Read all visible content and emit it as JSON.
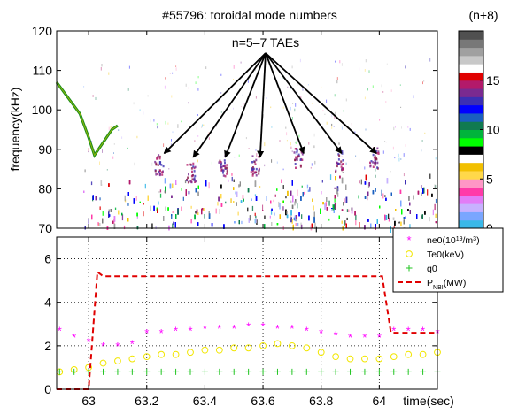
{
  "figure": {
    "title": "#55796: toroidal mode numbers",
    "colorbar_title": "(n+8)",
    "annotation": "n=5–7 TAEs"
  },
  "chart_data": [
    {
      "type": "heatmap",
      "title": "#55796: toroidal mode numbers",
      "xlabel": "",
      "ylabel": "frequency(kHz)",
      "xlim": [
        62.89,
        64.2
      ],
      "ylim": [
        70,
        120
      ],
      "yticks": [
        70,
        80,
        90,
        100,
        110,
        120
      ],
      "annotation": "n=5–7 TAEs",
      "arrow_targets": [
        {
          "t": 63.26,
          "f": 89
        },
        {
          "t": 63.36,
          "f": 88
        },
        {
          "t": 63.47,
          "f": 88
        },
        {
          "t": 63.59,
          "f": 88
        },
        {
          "t": 63.74,
          "f": 89
        },
        {
          "t": 63.87,
          "f": 89
        },
        {
          "t": 63.99,
          "f": 89
        }
      ],
      "features": {
        "sweeping_mode": [
          [
            62.89,
            107
          ],
          [
            62.97,
            99
          ],
          [
            63.0,
            93
          ],
          [
            63.02,
            88.5
          ],
          [
            63.08,
            95
          ],
          [
            63.1,
            96
          ]
        ],
        "tae_bursts": [
          {
            "t": 63.24,
            "f": 87
          },
          {
            "t": 63.35,
            "f": 85
          },
          {
            "t": 63.46,
            "f": 87
          },
          {
            "t": 63.57,
            "f": 87
          },
          {
            "t": 63.72,
            "f": 89
          },
          {
            "t": 63.86,
            "f": 88
          },
          {
            "t": 63.98,
            "f": 89
          }
        ],
        "broadband_below_khz": 84,
        "broadband_start_t": 62.98
      },
      "colorbar": {
        "title": "(n+8)",
        "range": [
          0,
          20
        ],
        "ticks": [
          0,
          5,
          10,
          15
        ],
        "colors": [
          "#3ab8e8",
          "#7aa6ff",
          "#c7b1ff",
          "#e27cf6",
          "#ff3aa8",
          "#ff97c6",
          "#ffd84a",
          "#f2c000",
          "#ffffff",
          "#000000",
          "#00ff00",
          "#00b43c",
          "#107a50",
          "#1a5fbf",
          "#0000ff",
          "#3c2fb3",
          "#7a2a90",
          "#b31a6a",
          "#e00000",
          "#ffffff",
          "#c8c8c8",
          "#a0a0a0",
          "#787878",
          "#505050"
        ]
      },
      "colormap_labels": [
        "0",
        "5",
        "10",
        "15"
      ]
    },
    {
      "type": "scatter",
      "xlabel": "time(sec)",
      "ylabel": "",
      "xlim": [
        62.89,
        64.2
      ],
      "ylim": [
        0,
        7
      ],
      "xticks": [
        63,
        63.2,
        63.4,
        63.6,
        63.8,
        64
      ],
      "yticks": [
        0,
        2,
        4,
        6
      ],
      "grid": true,
      "legend": "top-right",
      "series": [
        {
          "name": "ne0(10^19/m^3)",
          "legend_label": "ne0(10",
          "legend_sup": "19",
          "legend_tail": "/m",
          "legend_sup2": "3",
          "legend_end": ")",
          "marker": "*",
          "color": "#ff00ff",
          "x": [
            62.9,
            62.95,
            63.0,
            63.05,
            63.1,
            63.15,
            63.2,
            63.25,
            63.3,
            63.35,
            63.4,
            63.45,
            63.5,
            63.55,
            63.6,
            63.65,
            63.7,
            63.75,
            63.8,
            63.85,
            63.9,
            63.95,
            64.0,
            64.05,
            64.1,
            64.15,
            64.2
          ],
          "y": [
            2.7,
            2.4,
            2.2,
            2.0,
            2.0,
            2.1,
            2.6,
            2.6,
            2.7,
            2.7,
            2.8,
            2.8,
            2.8,
            2.9,
            2.9,
            2.8,
            2.8,
            2.7,
            2.6,
            2.5,
            2.4,
            2.4,
            2.4,
            2.7,
            2.7,
            2.7,
            2.6
          ]
        },
        {
          "name": "Te0(keV)",
          "marker": "o",
          "color": "#f2e600",
          "x": [
            62.9,
            62.95,
            63.0,
            63.05,
            63.1,
            63.15,
            63.2,
            63.25,
            63.3,
            63.35,
            63.4,
            63.45,
            63.5,
            63.55,
            63.6,
            63.65,
            63.7,
            63.75,
            63.8,
            63.85,
            63.9,
            63.95,
            64.0,
            64.05,
            64.1,
            64.15,
            64.2
          ],
          "y": [
            0.8,
            0.9,
            1.0,
            1.2,
            1.3,
            1.4,
            1.5,
            1.6,
            1.6,
            1.7,
            1.8,
            1.8,
            1.9,
            1.9,
            2.0,
            2.1,
            2.0,
            1.9,
            1.7,
            1.5,
            1.4,
            1.4,
            1.4,
            1.5,
            1.6,
            1.6,
            1.7
          ]
        },
        {
          "name": "q0",
          "marker": "+",
          "color": "#22c522",
          "x": [
            62.9,
            62.95,
            63.0,
            63.05,
            63.1,
            63.15,
            63.2,
            63.25,
            63.3,
            63.35,
            63.4,
            63.45,
            63.5,
            63.55,
            63.6,
            63.65,
            63.7,
            63.75,
            63.8,
            63.85,
            63.9,
            63.95,
            64.0,
            64.05,
            64.1,
            64.15,
            64.2
          ],
          "y": [
            0.8,
            0.8,
            0.8,
            0.8,
            0.8,
            0.8,
            0.8,
            0.8,
            0.8,
            0.8,
            0.8,
            0.8,
            0.8,
            0.8,
            0.8,
            0.8,
            0.8,
            0.8,
            0.8,
            0.8,
            0.8,
            0.8,
            0.8,
            0.8,
            0.8,
            0.8,
            0.8
          ]
        },
        {
          "name": "P_NBI(MW)",
          "legend_label": "P",
          "legend_sub": "NBI",
          "legend_end": "(MW)",
          "type": "line",
          "style": "dashed",
          "color": "#e00000",
          "x": [
            62.89,
            62.96,
            63.0,
            63.03,
            63.05,
            64.01,
            64.04,
            64.2
          ],
          "y": [
            0.0,
            0.0,
            0.0,
            5.4,
            5.2,
            5.2,
            2.6,
            2.6
          ]
        }
      ]
    }
  ]
}
